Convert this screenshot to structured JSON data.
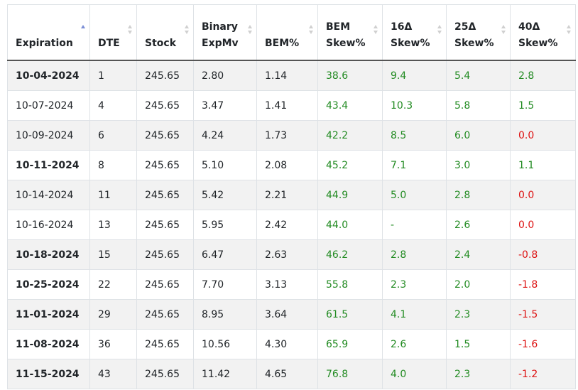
{
  "columns": [
    {
      "key": "exp",
      "lines": [
        "Expiration"
      ],
      "sort": "asc"
    },
    {
      "key": "dte",
      "lines": [
        "DTE"
      ],
      "sort": "none"
    },
    {
      "key": "stock",
      "lines": [
        "Stock"
      ],
      "sort": "none"
    },
    {
      "key": "binary",
      "lines": [
        "Binary",
        "ExpMv"
      ],
      "sort": "none"
    },
    {
      "key": "bem",
      "lines": [
        "BEM%"
      ],
      "sort": "none"
    },
    {
      "key": "bemskew",
      "lines": [
        "BEM",
        "Skew%"
      ],
      "sort": "none"
    },
    {
      "key": "d16",
      "lines": [
        "16Δ",
        "Skew%"
      ],
      "sort": "none"
    },
    {
      "key": "d25",
      "lines": [
        "25Δ",
        "Skew%"
      ],
      "sort": "none"
    },
    {
      "key": "d40",
      "lines": [
        "40Δ",
        "Skew%"
      ],
      "sort": "none"
    }
  ],
  "rows": [
    {
      "exp": "10-04-2024",
      "bold": true,
      "dte": "1",
      "stock": "245.65",
      "binary": "2.80",
      "bem": "1.14",
      "bemskew": "38.6",
      "d16": "9.4",
      "d25": "5.4",
      "d40": "2.8",
      "d40_neg": false
    },
    {
      "exp": "10-07-2024",
      "bold": false,
      "dte": "4",
      "stock": "245.65",
      "binary": "3.47",
      "bem": "1.41",
      "bemskew": "43.4",
      "d16": "10.3",
      "d25": "5.8",
      "d40": "1.5",
      "d40_neg": false
    },
    {
      "exp": "10-09-2024",
      "bold": false,
      "dte": "6",
      "stock": "245.65",
      "binary": "4.24",
      "bem": "1.73",
      "bemskew": "42.2",
      "d16": "8.5",
      "d25": "6.0",
      "d40": "0.0",
      "d40_neg": true
    },
    {
      "exp": "10-11-2024",
      "bold": true,
      "dte": "8",
      "stock": "245.65",
      "binary": "5.10",
      "bem": "2.08",
      "bemskew": "45.2",
      "d16": "7.1",
      "d25": "3.0",
      "d40": "1.1",
      "d40_neg": false
    },
    {
      "exp": "10-14-2024",
      "bold": false,
      "dte": "11",
      "stock": "245.65",
      "binary": "5.42",
      "bem": "2.21",
      "bemskew": "44.9",
      "d16": "5.0",
      "d25": "2.8",
      "d40": "0.0",
      "d40_neg": true
    },
    {
      "exp": "10-16-2024",
      "bold": false,
      "dte": "13",
      "stock": "245.65",
      "binary": "5.95",
      "bem": "2.42",
      "bemskew": "44.0",
      "d16": "-",
      "d25": "2.6",
      "d40": "0.0",
      "d40_neg": true
    },
    {
      "exp": "10-18-2024",
      "bold": true,
      "dte": "15",
      "stock": "245.65",
      "binary": "6.47",
      "bem": "2.63",
      "bemskew": "46.2",
      "d16": "2.8",
      "d25": "2.4",
      "d40": "-0.8",
      "d40_neg": true
    },
    {
      "exp": "10-25-2024",
      "bold": true,
      "dte": "22",
      "stock": "245.65",
      "binary": "7.70",
      "bem": "3.13",
      "bemskew": "55.8",
      "d16": "2.3",
      "d25": "2.0",
      "d40": "-1.8",
      "d40_neg": true
    },
    {
      "exp": "11-01-2024",
      "bold": true,
      "dte": "29",
      "stock": "245.65",
      "binary": "8.95",
      "bem": "3.64",
      "bemskew": "61.5",
      "d16": "4.1",
      "d25": "2.3",
      "d40": "-1.5",
      "d40_neg": true
    },
    {
      "exp": "11-08-2024",
      "bold": true,
      "dte": "36",
      "stock": "245.65",
      "binary": "10.56",
      "bem": "4.30",
      "bemskew": "65.9",
      "d16": "2.6",
      "d25": "1.5",
      "d40": "-1.6",
      "d40_neg": true
    },
    {
      "exp": "11-15-2024",
      "bold": true,
      "dte": "43",
      "stock": "245.65",
      "binary": "11.42",
      "bem": "4.65",
      "bemskew": "76.8",
      "d16": "4.0",
      "d25": "2.3",
      "d40": "-1.2",
      "d40_neg": true
    }
  ],
  "colors": {
    "positive": "#228b22",
    "negative": "#dd1111",
    "sort_active": "#7b8ed6",
    "sort_inactive": "#d0d0d0",
    "stripe": "#f2f2f2"
  }
}
